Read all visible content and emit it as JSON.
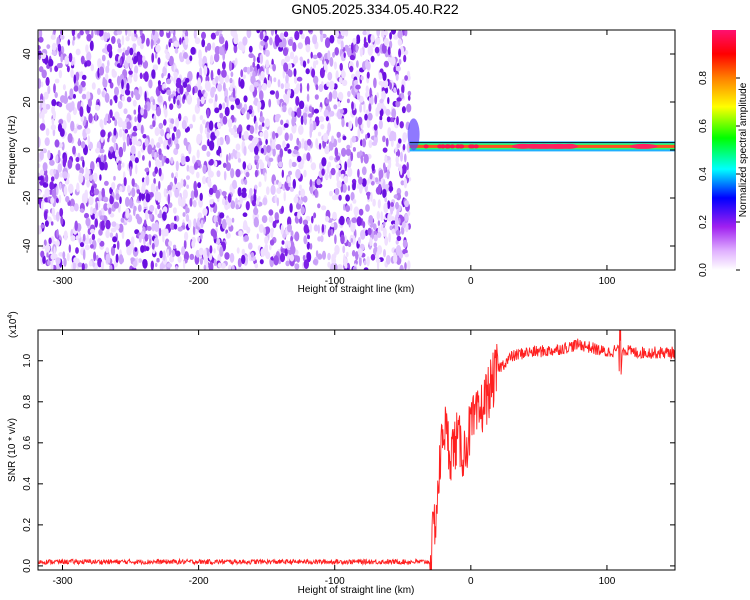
{
  "title": "GN05.2025.334.05.40.R22",
  "chart_data": [
    {
      "type": "heatmap",
      "name": "spectrogram",
      "xlabel": "Height of straight line (km)",
      "ylabel": "Frequency (Hz)",
      "xlim": [
        -318,
        150
      ],
      "ylim": [
        -50,
        50
      ],
      "xticks": [
        -300,
        -200,
        -100,
        0,
        100
      ],
      "yticks": [
        -40,
        -20,
        0,
        20,
        40
      ],
      "noise_region": {
        "x": [
          -318,
          -45
        ],
        "description_values": "scattered low amplitude (0.05-0.35)"
      },
      "signal_line": {
        "x": [
          -45,
          150
        ],
        "frequency": 1.5,
        "amplitude_range": [
          0.3,
          1.0
        ]
      },
      "colorbar": {
        "label": "Normalized spectral amplitude",
        "ticks": [
          0.0,
          0.2,
          0.4,
          0.6,
          0.8
        ],
        "range": [
          0.0,
          1.0
        ],
        "colors": [
          "#ffffff",
          "#a020f0",
          "#0000ff",
          "#00ffff",
          "#00ff00",
          "#ffff00",
          "#ff8000",
          "#ff0000",
          "#ff0080"
        ]
      }
    },
    {
      "type": "line",
      "name": "snr",
      "xlabel": "Height of straight line (km)",
      "ylabel": "SNR (10 * v/v)",
      "multiplier": "(x10",
      "multiplier_exp": "4",
      "multiplier_close": ")",
      "xlim": [
        -318,
        150
      ],
      "ylim": [
        -0.02,
        1.15
      ],
      "xticks": [
        -300,
        -200,
        -100,
        0,
        100
      ],
      "yticks": [
        0.0,
        0.2,
        0.4,
        0.6,
        0.8,
        1.0
      ],
      "color": "#ff2020",
      "series": [
        {
          "name": "SNR",
          "x": [
            -318,
            -30,
            -25,
            -20,
            -15,
            -10,
            -5,
            0,
            5,
            10,
            15,
            20,
            30,
            40,
            60,
            80,
            100,
            110,
            120,
            150
          ],
          "values": [
            0.02,
            0.02,
            0.3,
            0.7,
            0.55,
            0.62,
            0.55,
            0.68,
            0.72,
            0.8,
            0.88,
            0.96,
            1.02,
            1.04,
            1.05,
            1.08,
            1.04,
            1.06,
            1.04,
            1.04
          ]
        }
      ]
    }
  ]
}
